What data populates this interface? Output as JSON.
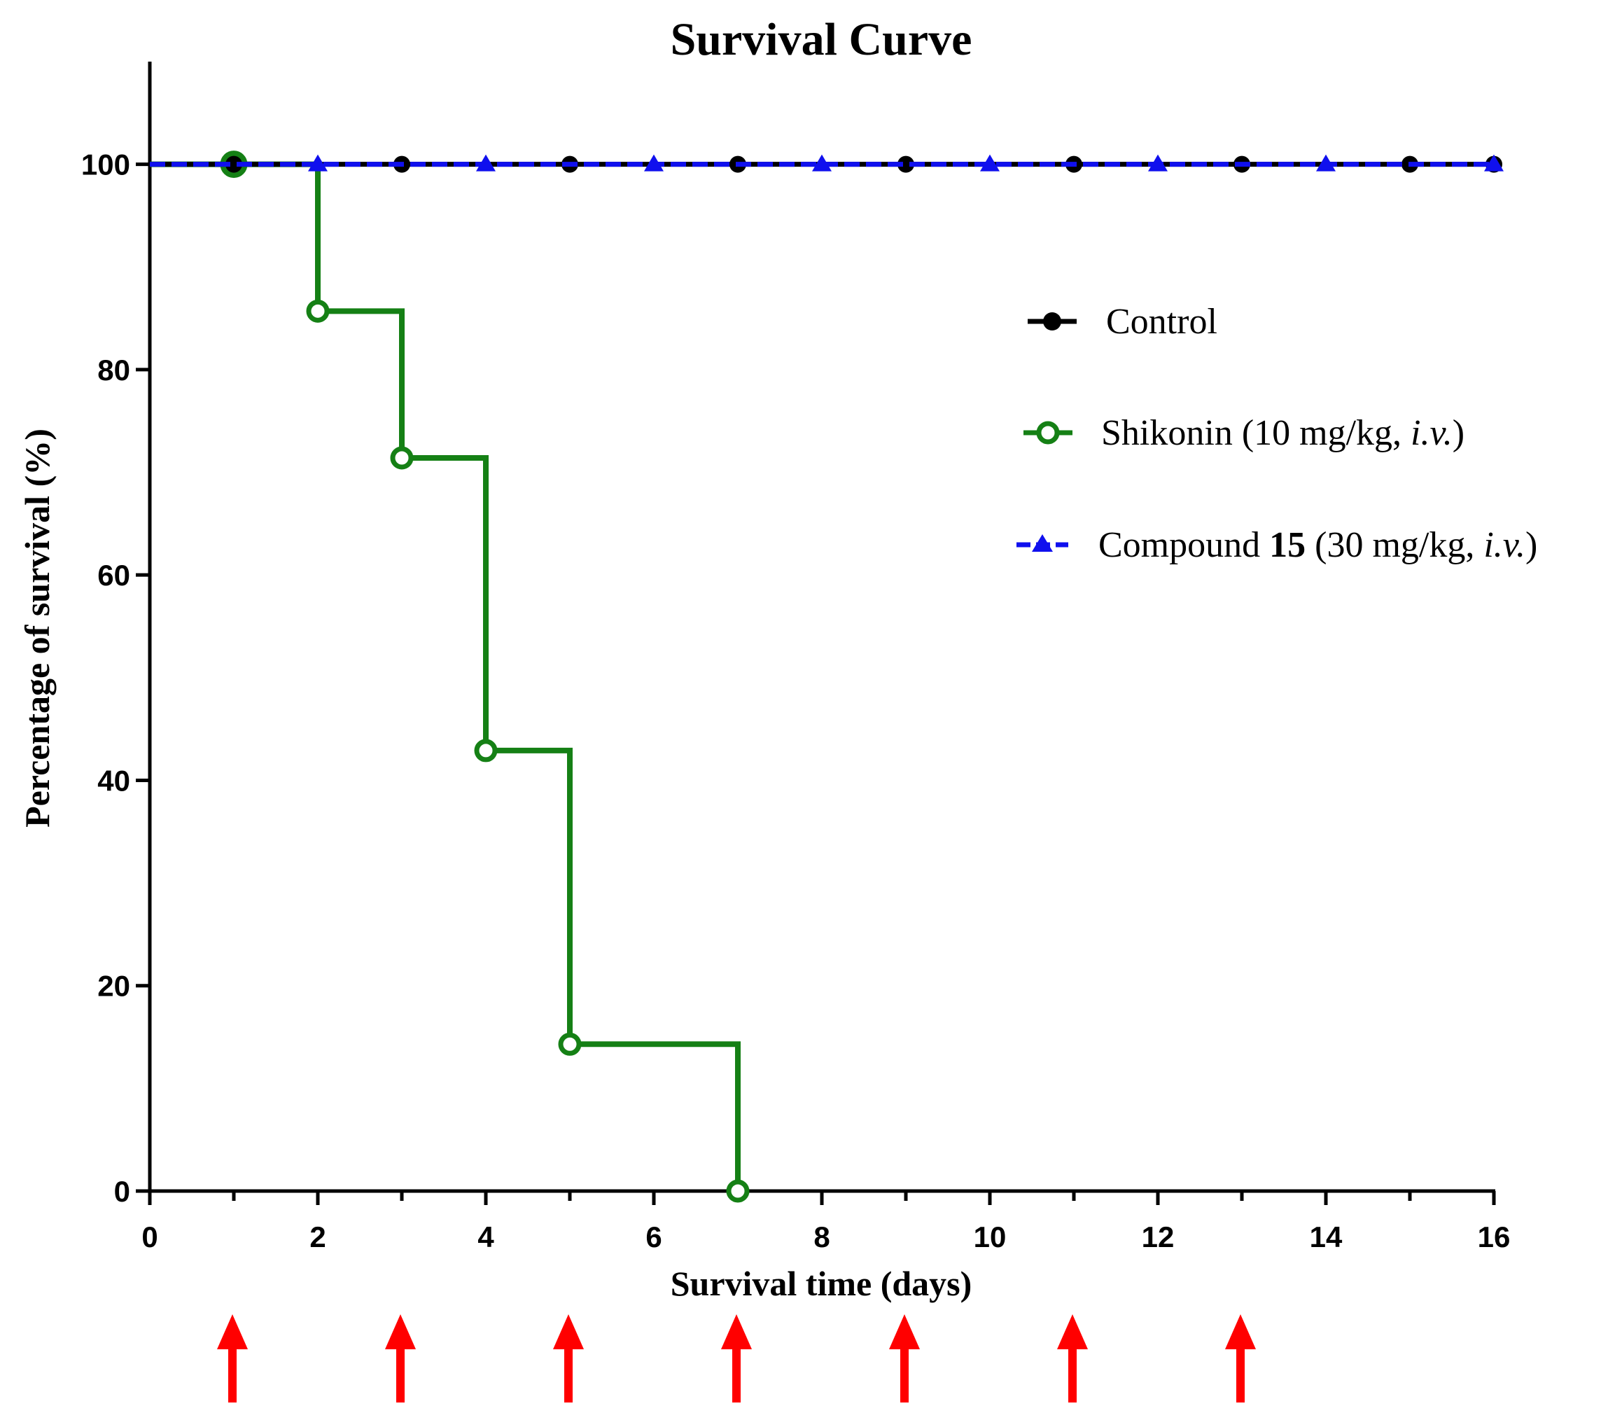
{
  "chart_data": {
    "type": "line",
    "subtype": "kaplan-meier step",
    "title": "Survival Curve",
    "xlabel": "Survival time (days)",
    "ylabel": "Percentage of survival (%)",
    "xlim": [
      0,
      16
    ],
    "ylim": [
      0,
      110
    ],
    "xticks": [
      0,
      2,
      4,
      6,
      8,
      10,
      12,
      14,
      16
    ],
    "xticks_minor": [
      1,
      3,
      5,
      7,
      9,
      11,
      13,
      15
    ],
    "yticks": [
      0,
      20,
      40,
      60,
      80,
      100
    ],
    "grid": false,
    "legend_position": "right",
    "series": [
      {
        "name": "Control",
        "color": "#000000",
        "marker": "filled-circle",
        "line": "solid",
        "x": [
          0,
          1,
          3,
          5,
          7,
          9,
          11,
          13,
          15,
          16
        ],
        "y": [
          100,
          100,
          100,
          100,
          100,
          100,
          100,
          100,
          100,
          100
        ]
      },
      {
        "name": "Shikonin (10 mg/kg, i.v.)",
        "color": "#158015",
        "marker": "open-circle",
        "line": "solid-step",
        "x": [
          0,
          1,
          2,
          3,
          4,
          5,
          7
        ],
        "y": [
          100,
          100,
          85.7,
          71.4,
          42.9,
          14.3,
          0
        ]
      },
      {
        "name": "Compound 15 (30 mg/kg, i.v.)",
        "color": "#1010ee",
        "marker": "filled-triangle",
        "line": "dashed",
        "x": [
          0,
          2,
          4,
          6,
          8,
          10,
          12,
          14,
          16
        ],
        "y": [
          100,
          100,
          100,
          100,
          100,
          100,
          100,
          100,
          100
        ]
      }
    ],
    "annotations": {
      "dosing_arrows_days": [
        1,
        3,
        5,
        7,
        9,
        11,
        13
      ],
      "arrow_color": "#ff0000"
    }
  },
  "legend": {
    "control": {
      "text": "Control"
    },
    "shikonin": {
      "text": "Shikonin (10 mg/kg, ",
      "italic": "i.v.",
      "close": ")"
    },
    "compound": {
      "text": "Compound ",
      "bold": "15",
      "rest": " (30 mg/kg, ",
      "italic": "i.v.",
      "close": ")"
    }
  }
}
